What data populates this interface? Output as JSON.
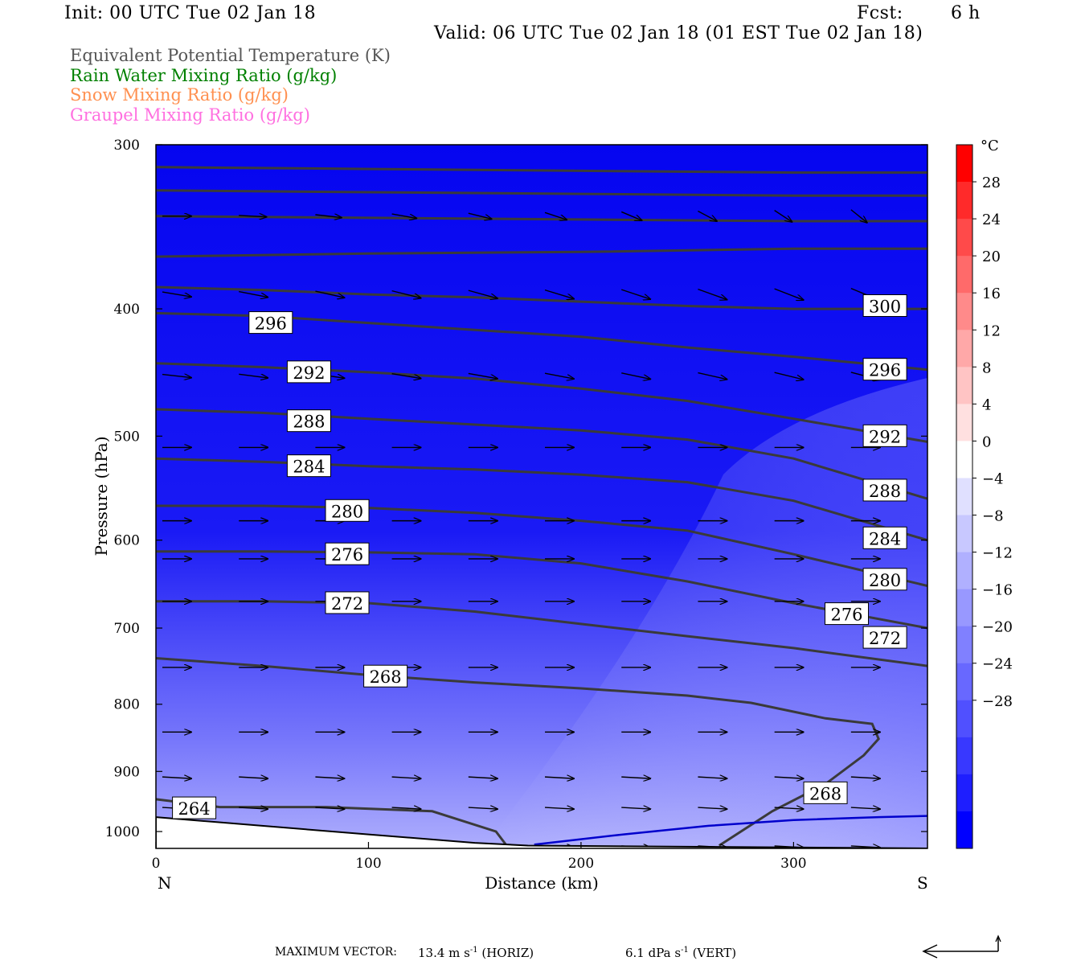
{
  "header": {
    "init": "Init: 00 UTC Tue 02 Jan 18",
    "fcst_label": "Fcst:",
    "fcst_value": "6 h",
    "valid": "Valid: 06 UTC Tue 02 Jan 18 (01 EST Tue 02 Jan 18)"
  },
  "legend": [
    {
      "label": "Equivalent Potential Temperature (K)",
      "color": "#555555"
    },
    {
      "label": "Rain Water Mixing Ratio (g/kg)",
      "color": "#008000"
    },
    {
      "label": "Snow Mixing Ratio (g/kg)",
      "color": "#ff9050"
    },
    {
      "label": "Graupel Mixing Ratio (g/kg)",
      "color": "#ff70e0"
    }
  ],
  "footer": {
    "max_vector_label": "MAXIMUM VECTOR:",
    "horiz_value": "13.4 m s",
    "horiz_exp": "-1",
    "horiz_unit": " (HORIZ)",
    "vert_value": "6.1 dPa s",
    "vert_exp": "-1",
    "vert_unit": " (VERT)"
  },
  "chart_data": {
    "type": "cross-section",
    "xlabel": "Distance (km)",
    "ylabel": "Pressure (hPa)",
    "xlim": [
      0,
      363
    ],
    "ylim": [
      1030,
      300
    ],
    "y_scale": "log",
    "x_ticks": [
      0,
      100,
      200,
      300
    ],
    "y_ticks": [
      300,
      400,
      500,
      600,
      700,
      800,
      900,
      1000
    ],
    "x_end_labels": {
      "left": "N",
      "right": "S"
    },
    "colorbar": {
      "unit": "°C",
      "tick_labels": [
        "28",
        "24",
        "20",
        "16",
        "12",
        "8",
        "4",
        "0",
        "−4",
        "−8",
        "−12",
        "−16",
        "−20",
        "−24",
        "−28"
      ],
      "colors": [
        "#ff0000",
        "#ff2a2a",
        "#ff4a4a",
        "#ff6a6a",
        "#ff8a8a",
        "#ffa8a8",
        "#ffc4c4",
        "#ffe0e0",
        "#ffffff",
        "#e0e0ff",
        "#c8c8ff",
        "#b0b0ff",
        "#9898ff",
        "#8080ff",
        "#6868ff",
        "#5050ff",
        "#3838ff",
        "#1e1eff",
        "#0000ff"
      ]
    },
    "theta_e_contours": [
      {
        "label": "264",
        "x": [
          0,
          30,
          80,
          130,
          160,
          165
        ],
        "p": [
          945,
          958,
          958,
          965,
          1000,
          1025
        ],
        "label_at": [
          18,
          960
        ]
      },
      {
        "label": "268",
        "x": [
          0,
          50,
          100,
          150,
          200,
          250,
          280,
          315,
          337,
          340,
          333,
          315,
          290,
          265
        ],
        "p": [
          738,
          748,
          760,
          770,
          778,
          788,
          798,
          820,
          828,
          850,
          875,
          920,
          965,
          1025
        ],
        "label_at": [
          108,
          762
        ],
        "label2_at": [
          315,
          935
        ]
      },
      {
        "label": "272",
        "x": [
          0,
          50,
          100,
          150,
          200,
          250,
          300,
          363
        ],
        "p": [
          668,
          668,
          670,
          680,
          695,
          710,
          725,
          748
        ],
        "label_at": [
          90,
          670
        ],
        "label2_at": [
          343,
          712
        ]
      },
      {
        "label": "276",
        "x": [
          0,
          50,
          100,
          150,
          200,
          250,
          300,
          363
        ],
        "p": [
          612,
          612,
          613,
          615,
          625,
          645,
          670,
          700
        ],
        "label_at": [
          90,
          615
        ],
        "label2_at": [
          325,
          683
        ]
      },
      {
        "label": "280",
        "x": [
          0,
          50,
          100,
          150,
          200,
          250,
          300,
          363
        ],
        "p": [
          565,
          565,
          567,
          572,
          580,
          590,
          615,
          650
        ],
        "label_at": [
          90,
          570
        ],
        "label2_at": [
          343,
          643
        ]
      },
      {
        "label": "284",
        "x": [
          0,
          50,
          100,
          150,
          200,
          250,
          300,
          363
        ],
        "p": [
          520,
          523,
          527,
          530,
          535,
          542,
          560,
          600
        ],
        "label_at": [
          72,
          527
        ],
        "label2_at": [
          343,
          598
        ]
      },
      {
        "label": "288",
        "x": [
          0,
          50,
          100,
          150,
          200,
          250,
          300,
          363
        ],
        "p": [
          477,
          480,
          485,
          490,
          495,
          503,
          520,
          558
        ],
        "label_at": [
          72,
          487
        ],
        "label2_at": [
          343,
          550
        ]
      },
      {
        "label": "292",
        "x": [
          0,
          50,
          100,
          150,
          200,
          250,
          300,
          363
        ],
        "p": [
          440,
          443,
          447,
          452,
          460,
          470,
          485,
          505
        ],
        "label_at": [
          72,
          447
        ],
        "label2_at": [
          343,
          500
        ]
      },
      {
        "label": "296",
        "x": [
          0,
          50,
          100,
          150,
          200,
          250,
          300,
          363
        ],
        "p": [
          403,
          405,
          410,
          415,
          420,
          428,
          435,
          445
        ],
        "label_at": [
          54,
          410
        ],
        "label2_at": [
          343,
          445
        ]
      },
      {
        "label": "300",
        "x": [
          0,
          50,
          100,
          150,
          200,
          250,
          300,
          363
        ],
        "p": [
          385,
          387,
          390,
          392,
          395,
          398,
          400,
          400
        ],
        "label_at": [
          343,
          398
        ]
      },
      {
        "label": "",
        "x": [
          0,
          100,
          200,
          300,
          363
        ],
        "p": [
          365,
          363,
          362,
          360,
          360
        ]
      },
      {
        "label": "",
        "x": [
          0,
          100,
          200,
          300,
          363
        ],
        "p": [
          340,
          341,
          342,
          343,
          343
        ]
      },
      {
        "label": "",
        "x": [
          0,
          100,
          200,
          300,
          363
        ],
        "p": [
          325,
          326,
          327,
          328,
          328
        ]
      },
      {
        "label": "",
        "x": [
          0,
          100,
          200,
          300,
          363
        ],
        "p": [
          312,
          313,
          314,
          315,
          315
        ]
      }
    ],
    "rain_contour": {
      "color": "#0000cc",
      "x": [
        178,
        220,
        260,
        300,
        340,
        363
      ],
      "p": [
        1023,
        1005,
        990,
        980,
        975,
        973
      ]
    },
    "terrain": {
      "x": [
        0,
        50,
        100,
        150,
        175,
        363
      ],
      "p": [
        975,
        990,
        1005,
        1020,
        1025,
        1030
      ]
    }
  }
}
